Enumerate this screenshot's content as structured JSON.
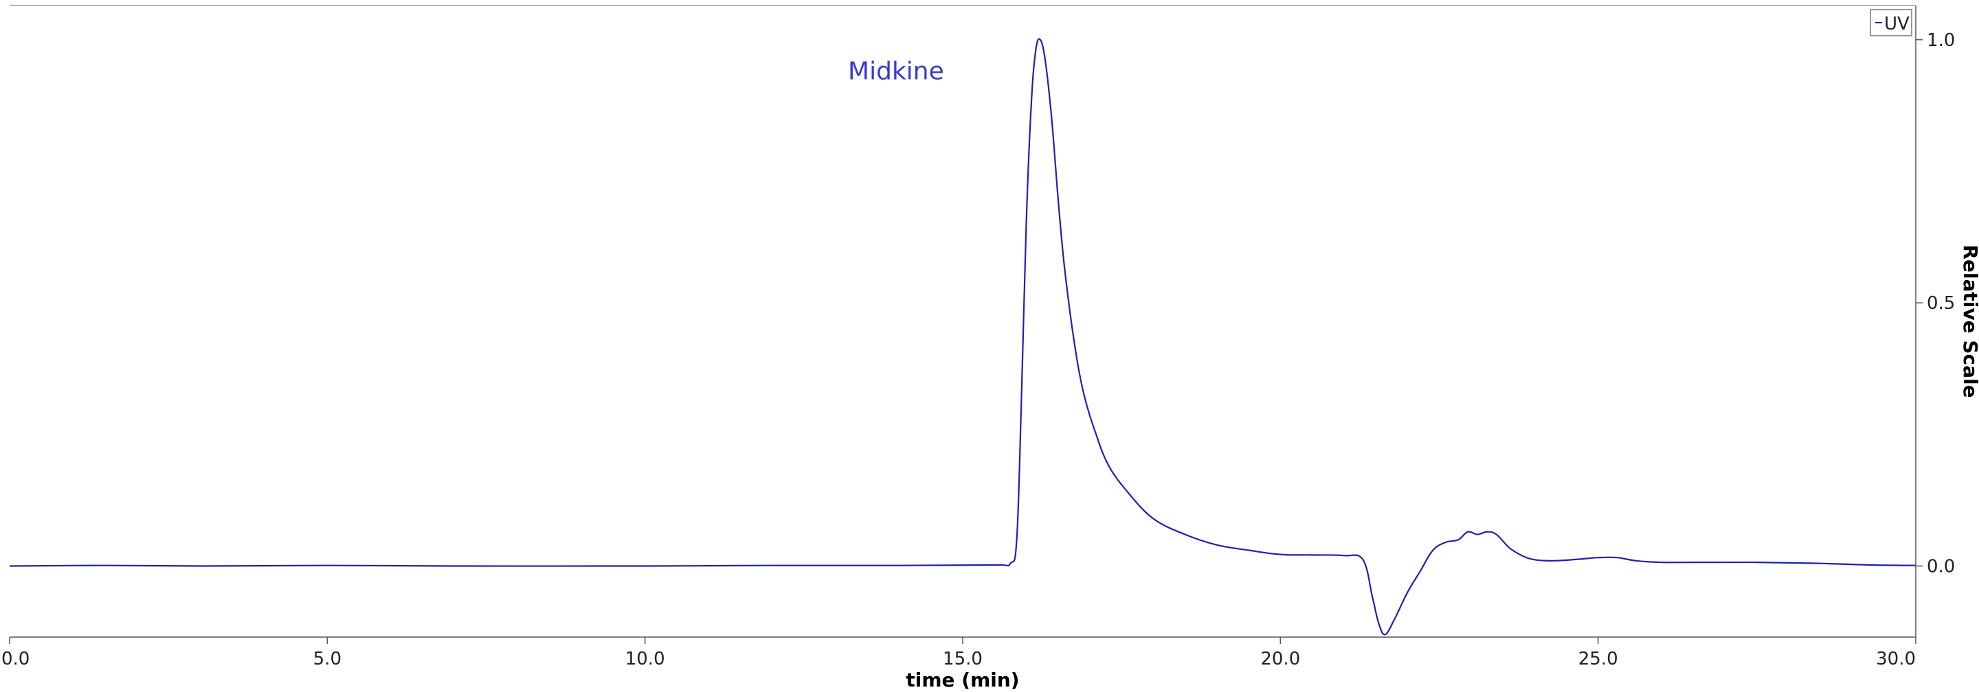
{
  "chart_data": {
    "type": "line",
    "xlabel": "time (min)",
    "ylabel": "Relative Scale",
    "xlim": [
      0,
      30
    ],
    "ylim": [
      -0.135,
      1.065
    ],
    "xticks": [
      0,
      5,
      10,
      15,
      20,
      25,
      30
    ],
    "xtick_labels": [
      "0.0",
      "5.0",
      "10.0",
      "15.0",
      "20.0",
      "25.0",
      "30.0"
    ],
    "yticks": [
      0,
      0.5,
      1.0
    ],
    "ytick_labels": [
      "0.0",
      "0.5",
      "1.0"
    ],
    "y_axis_side": "right",
    "grid": false,
    "legend": {
      "placement": "top-right",
      "entries": [
        "UV"
      ]
    },
    "annotations": [
      {
        "text": "Midkine",
        "x": 13.95,
        "y": 0.925
      }
    ],
    "series": [
      {
        "name": "UV",
        "color": "#1f1fb4",
        "x": [
          0,
          1.5,
          3,
          5,
          7,
          10,
          12,
          14,
          15.5,
          15.75,
          15.85,
          15.92,
          16.0,
          16.08,
          16.15,
          16.22,
          16.3,
          16.4,
          16.5,
          16.6,
          16.75,
          16.9,
          17.1,
          17.3,
          17.6,
          18.0,
          18.5,
          19.0,
          19.5,
          20.0,
          20.5,
          21.0,
          21.3,
          21.45,
          21.55,
          21.65,
          21.8,
          22.0,
          22.2,
          22.4,
          22.6,
          22.8,
          22.95,
          23.1,
          23.25,
          23.4,
          23.6,
          23.8,
          24.0,
          24.3,
          24.7,
          25.0,
          25.3,
          25.6,
          26.0,
          26.5,
          27.5,
          28.5,
          29.3,
          30.0
        ],
        "y": [
          0,
          0.001,
          0,
          0.001,
          0,
          0,
          0.001,
          0.001,
          0.002,
          0.005,
          0.05,
          0.3,
          0.65,
          0.88,
          0.98,
          1.0,
          0.96,
          0.85,
          0.7,
          0.57,
          0.43,
          0.33,
          0.25,
          0.19,
          0.14,
          0.09,
          0.06,
          0.04,
          0.03,
          0.022,
          0.021,
          0.02,
          0.012,
          -0.06,
          -0.11,
          -0.13,
          -0.1,
          -0.05,
          -0.01,
          0.03,
          0.045,
          0.05,
          0.065,
          0.06,
          0.065,
          0.06,
          0.035,
          0.02,
          0.012,
          0.01,
          0.013,
          0.016,
          0.016,
          0.01,
          0.007,
          0.007,
          0.007,
          0.005,
          0.002,
          0.001
        ]
      }
    ]
  }
}
